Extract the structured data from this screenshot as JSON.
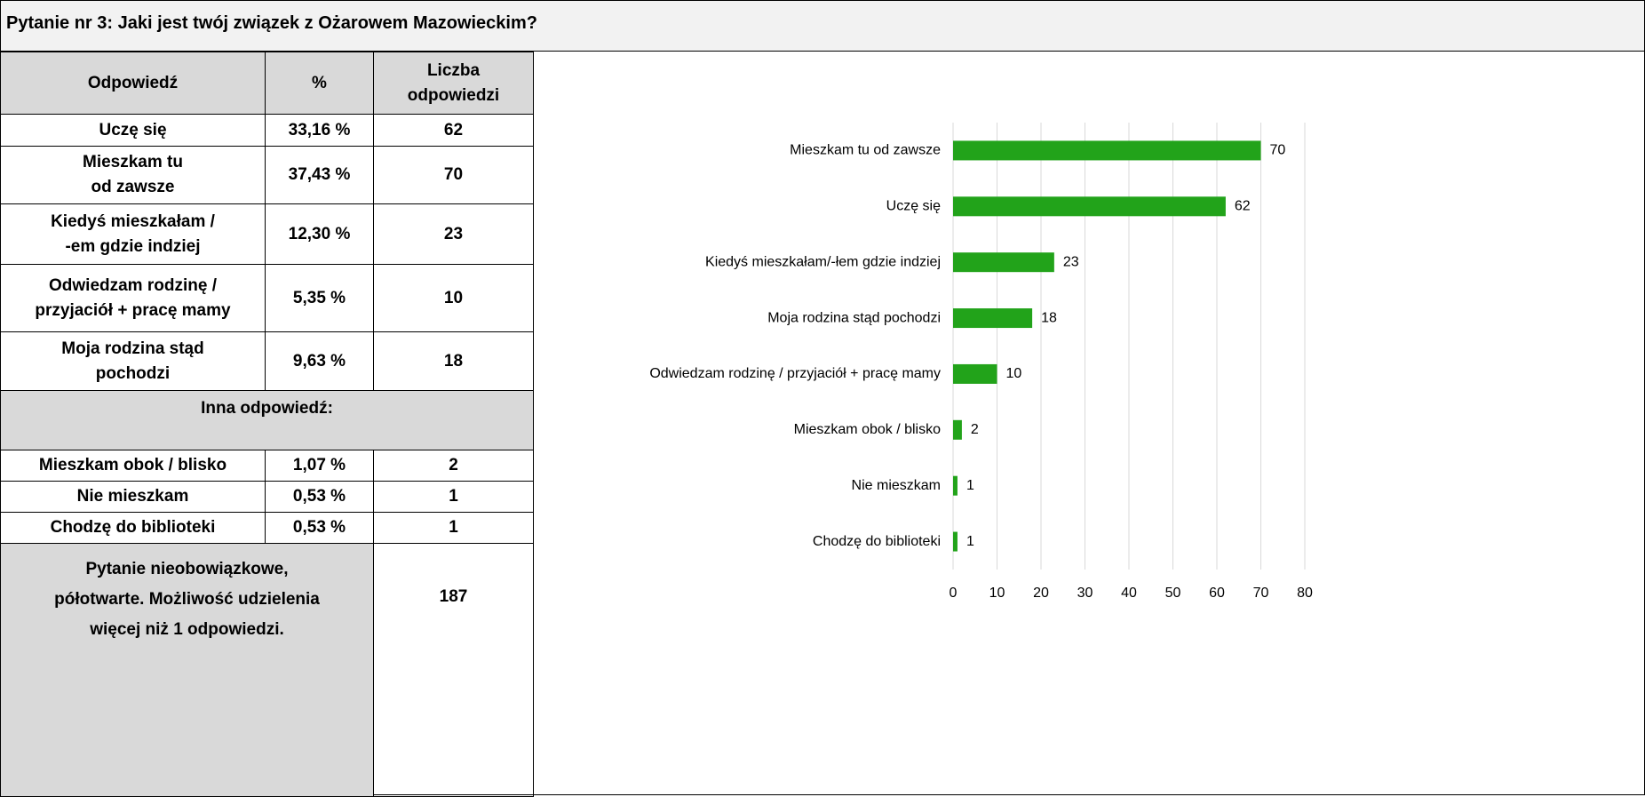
{
  "title": "Pytanie nr 3: Jaki jest twój związek z Ożarowem Mazowieckim?",
  "table": {
    "header": [
      "Odpowiedź",
      "%",
      "Liczba\nodpowiedzi"
    ],
    "rows": [
      [
        "Uczę się",
        "33,16 %",
        "62"
      ],
      [
        "Mieszkam tu\nod zawsze",
        "37,43 %",
        "70"
      ],
      [
        "Kiedyś mieszkałam /\n-em gdzie indziej",
        "12,30 %",
        "23"
      ],
      [
        "Odwiedzam rodzinę /\nprzyjaciół + pracę mamy",
        "5,35 %",
        "10"
      ],
      [
        "Moja rodzina stąd\npochodzi",
        "9,63 %",
        "18"
      ]
    ],
    "other_label": "Inna odpowiedź:",
    "other_rows": [
      [
        "Mieszkam obok / blisko",
        "1,07 %",
        "2"
      ],
      [
        "Nie mieszkam",
        "0,53 %",
        "1"
      ],
      [
        "Chodzę do biblioteki",
        "0,53 %",
        "1"
      ]
    ],
    "footer": [
      "Pytanie nieobowiązkowe,\npółotwarte. Możliwość udzielenia\nwięcej niż 1 odpowiedzi.",
      "187"
    ]
  },
  "chart_data": {
    "type": "barh",
    "categories": [
      "Mieszkam tu od zawsze",
      "Uczę się",
      "Kiedyś mieszkałam/-łem gdzie indziej",
      "Moja rodzina stąd pochodzi",
      "Odwiedzam rodzinę / przyjaciół + pracę mamy",
      "Mieszkam obok / blisko",
      "Nie mieszkam",
      "Chodzę do biblioteki"
    ],
    "values": [
      70,
      62,
      23,
      18,
      10,
      2,
      1,
      1
    ],
    "color": "#22a31a",
    "xlim": [
      0,
      80
    ],
    "xticks": [
      0,
      10,
      20,
      30,
      40,
      50,
      60,
      70,
      80
    ],
    "grid": true
  }
}
